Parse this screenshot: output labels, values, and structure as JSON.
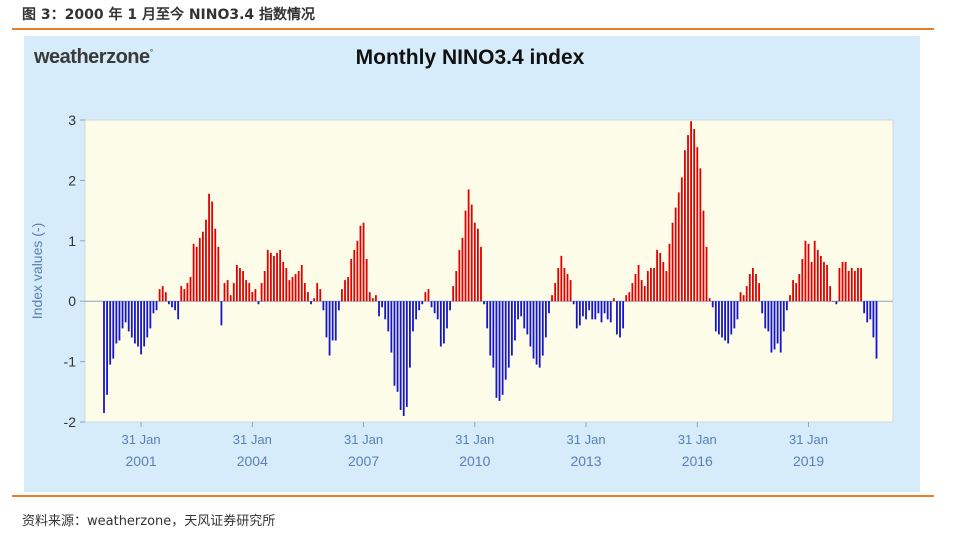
{
  "figure": {
    "caption": "图 3：2000 年 1 月至今 NINO3.4 指数情况",
    "source": "资料来源：weatherzone，天风证券研究所",
    "logo_text": "weatherzone"
  },
  "colors": {
    "positive": "#e00000",
    "negative": "#1515cc",
    "plot_bg": "#fdfce8",
    "panel_bg": "#d6ecfb",
    "rule": "#e87d2a",
    "axis_text": "#5b7fb3"
  },
  "chart_data": {
    "type": "bar",
    "title": "Monthly NINO3.4 index",
    "ylabel": "Index values (-)",
    "xlabel": "",
    "ylim": [
      -2,
      3
    ],
    "yticks": [
      -2,
      -1,
      0,
      1,
      2,
      3
    ],
    "xticks": [
      {
        "month_index": 12,
        "label_top": "31 Jan",
        "label_bottom": "2001"
      },
      {
        "month_index": 48,
        "label_top": "31 Jan",
        "label_bottom": "2004"
      },
      {
        "month_index": 84,
        "label_top": "31 Jan",
        "label_bottom": "2007"
      },
      {
        "month_index": 120,
        "label_top": "31 Jan",
        "label_bottom": "2010"
      },
      {
        "month_index": 156,
        "label_top": "31 Jan",
        "label_bottom": "2013"
      },
      {
        "month_index": 192,
        "label_top": "31 Jan",
        "label_bottom": "2016"
      },
      {
        "month_index": 228,
        "label_top": "31 Jan",
        "label_bottom": "2019"
      }
    ],
    "start": "2000-01",
    "grid": false,
    "values": [
      -1.85,
      -1.55,
      -1.05,
      -0.95,
      -0.7,
      -0.65,
      -0.45,
      -0.35,
      -0.5,
      -0.6,
      -0.7,
      -0.75,
      -0.88,
      -0.75,
      -0.6,
      -0.45,
      -0.2,
      -0.15,
      0.2,
      0.25,
      0.15,
      -0.05,
      -0.1,
      -0.15,
      -0.3,
      0.25,
      0.2,
      0.3,
      0.4,
      0.95,
      0.9,
      1.05,
      1.15,
      1.35,
      1.78,
      1.65,
      1.2,
      0.9,
      -0.4,
      0.3,
      0.35,
      0.1,
      0.3,
      0.6,
      0.55,
      0.5,
      0.35,
      0.3,
      0.15,
      0.2,
      -0.05,
      0.3,
      0.5,
      0.85,
      0.8,
      0.75,
      0.8,
      0.85,
      0.65,
      0.55,
      0.35,
      0.4,
      0.45,
      0.5,
      0.6,
      0.3,
      0.15,
      -0.05,
      0.05,
      0.3,
      0.2,
      -0.15,
      -0.6,
      -0.9,
      -0.65,
      -0.65,
      -0.15,
      0.2,
      0.35,
      0.4,
      0.7,
      0.85,
      1.0,
      1.25,
      1.3,
      0.7,
      0.15,
      0.05,
      0.1,
      -0.25,
      -0.1,
      -0.3,
      -0.5,
      -0.85,
      -1.4,
      -1.5,
      -1.8,
      -1.9,
      -1.75,
      -1.1,
      -0.5,
      -0.3,
      -0.15,
      -0.05,
      0.15,
      0.2,
      -0.1,
      -0.2,
      -0.3,
      -0.75,
      -0.7,
      -0.45,
      -0.15,
      0.25,
      0.5,
      0.85,
      1.05,
      1.5,
      1.85,
      1.6,
      1.3,
      1.2,
      0.9,
      -0.05,
      -0.45,
      -0.9,
      -1.1,
      -1.6,
      -1.65,
      -1.55,
      -1.3,
      -1.1,
      -0.9,
      -0.65,
      -0.3,
      -0.25,
      -0.45,
      -0.55,
      -0.75,
      -0.95,
      -1.05,
      -1.1,
      -0.9,
      -0.6,
      -0.2,
      0.1,
      0.3,
      0.55,
      0.75,
      0.55,
      0.45,
      0.35,
      -0.05,
      -0.45,
      -0.4,
      -0.25,
      -0.3,
      -0.15,
      -0.3,
      -0.3,
      -0.2,
      -0.35,
      -0.2,
      -0.3,
      -0.35,
      0.05,
      -0.55,
      -0.6,
      -0.45,
      0.1,
      0.15,
      0.3,
      0.45,
      0.6,
      0.35,
      0.25,
      0.5,
      0.55,
      0.55,
      0.85,
      0.8,
      0.65,
      0.5,
      0.95,
      1.3,
      1.55,
      1.8,
      2.05,
      2.5,
      2.75,
      2.98,
      2.85,
      2.55,
      2.2,
      1.5,
      0.9,
      0.05,
      -0.1,
      -0.5,
      -0.55,
      -0.6,
      -0.65,
      -0.7,
      -0.55,
      -0.45,
      -0.3,
      0.15,
      0.1,
      0.25,
      0.45,
      0.55,
      0.45,
      0.3,
      -0.2,
      -0.45,
      -0.5,
      -0.85,
      -0.8,
      -0.7,
      -0.85,
      -0.5,
      -0.15,
      0.1,
      0.35,
      0.3,
      0.45,
      0.7,
      1.0,
      0.95,
      0.65,
      1.0,
      0.85,
      0.75,
      0.65,
      0.6,
      0.25,
      0.0,
      -0.05,
      0.55,
      0.65,
      0.65,
      0.5,
      0.55,
      0.5,
      0.55,
      0.55,
      -0.2,
      -0.35,
      -0.3,
      -0.6,
      -0.95
    ]
  }
}
